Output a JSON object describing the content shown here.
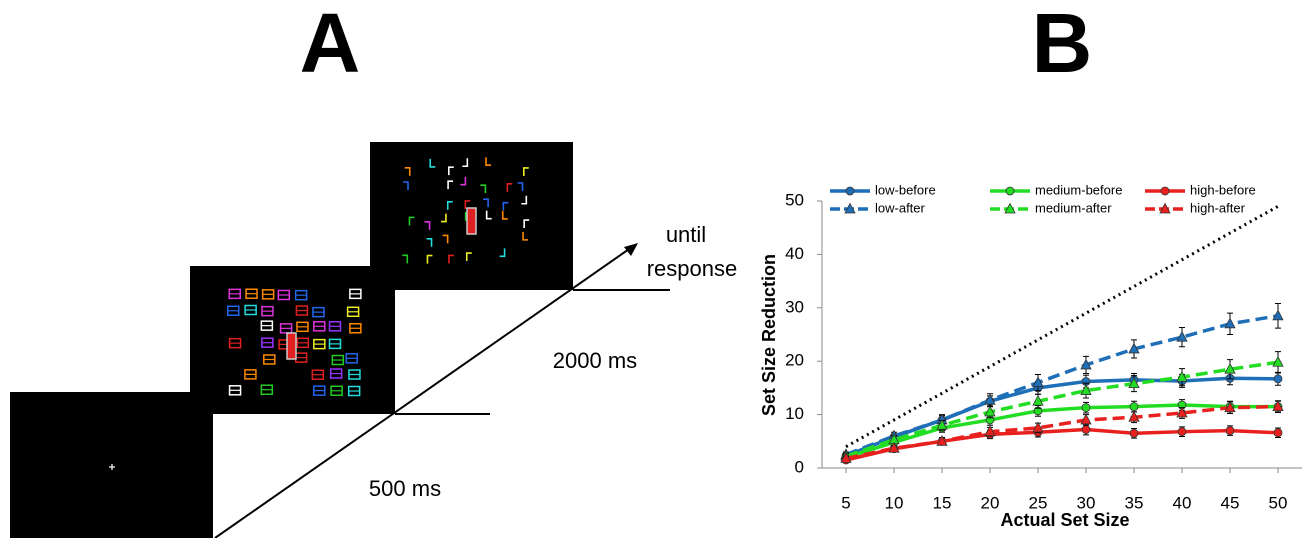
{
  "panel_a": {
    "label": "A",
    "durations": [
      "500 ms",
      "2000 ms"
    ],
    "final_duration": [
      "until",
      "response"
    ]
  },
  "chart_data": {
    "type": "line",
    "panel_label": "B",
    "x_label": "Actual Set Size",
    "y_label": "Set Size Reduction",
    "x": [
      5,
      10,
      15,
      20,
      25,
      30,
      35,
      40,
      45,
      50
    ],
    "xlim": [
      2.5,
      52.5
    ],
    "xticks": [
      5,
      10,
      15,
      20,
      25,
      30,
      35,
      40,
      45,
      50
    ],
    "ylim": [
      0,
      50
    ],
    "yticks": [
      0,
      10,
      20,
      30,
      40,
      50
    ],
    "reference_line": {
      "x": [
        5,
        50
      ],
      "values": [
        4,
        49
      ],
      "color": "#000000",
      "style": "dotted"
    },
    "series": [
      {
        "name": "low-before",
        "color": "#1f6fb8",
        "marker": "circle",
        "style": "solid",
        "values": [
          2.3,
          5.8,
          9,
          12.5,
          15,
          16.2,
          16.5,
          16.3,
          16.8,
          16.7
        ],
        "errors": [
          0.5,
          0.6,
          0.8,
          1,
          1.2,
          1.2,
          1.2,
          1.2,
          1.2,
          1.2
        ]
      },
      {
        "name": "low-after",
        "color": "#1f6fb8",
        "marker": "triangle",
        "style": "dashed",
        "values": [
          2.5,
          6,
          9,
          12.7,
          16,
          19.3,
          22.3,
          24.5,
          27,
          28.5
        ],
        "errors": [
          0.5,
          0.7,
          1,
          1.2,
          1.5,
          1.6,
          1.7,
          1.8,
          2,
          2.3
        ]
      },
      {
        "name": "medium-before",
        "color": "#22dd22",
        "marker": "circle",
        "style": "solid",
        "values": [
          2,
          4.8,
          7.5,
          9,
          10.7,
          11.3,
          11.5,
          11.8,
          11.5,
          11.5
        ],
        "errors": [
          0.5,
          0.6,
          0.8,
          1,
          1,
          1,
          1,
          1,
          1,
          1
        ]
      },
      {
        "name": "medium-after",
        "color": "#22dd22",
        "marker": "triangle",
        "style": "dashed",
        "values": [
          2.2,
          5.3,
          8,
          10.5,
          12.5,
          14.5,
          15.8,
          17,
          18.5,
          19.8
        ],
        "errors": [
          0.5,
          0.7,
          0.9,
          1.1,
          1.3,
          1.4,
          1.5,
          1.6,
          1.8,
          2
        ]
      },
      {
        "name": "high-before",
        "color": "#e8211e",
        "marker": "circle",
        "style": "solid",
        "values": [
          1.5,
          3.6,
          5,
          6.3,
          6.7,
          7.2,
          6.5,
          6.8,
          7,
          6.6
        ],
        "errors": [
          0.4,
          0.5,
          0.7,
          0.8,
          0.9,
          1,
          0.9,
          0.9,
          0.9,
          0.9
        ]
      },
      {
        "name": "high-after",
        "color": "#e8211e",
        "marker": "triangle",
        "style": "dashed",
        "values": [
          1.8,
          3.7,
          5,
          6.8,
          7.5,
          9,
          9.5,
          10.3,
          11.3,
          11.5
        ],
        "errors": [
          0.4,
          0.5,
          0.7,
          0.8,
          0.9,
          1,
          1,
          1,
          1.1,
          1.1
        ]
      }
    ]
  }
}
